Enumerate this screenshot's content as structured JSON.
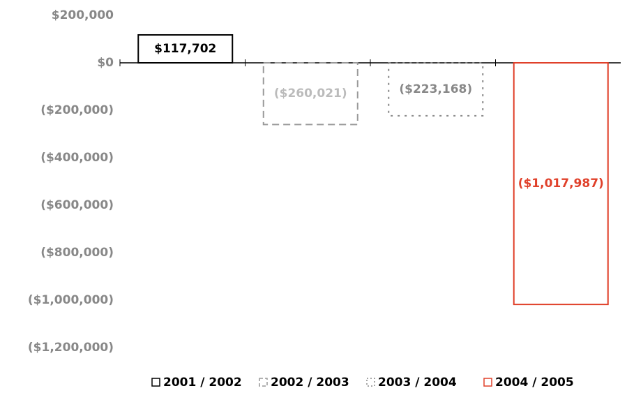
{
  "chart_data": {
    "type": "bar",
    "categories": [
      null
    ],
    "series": [
      {
        "name": "2001 / 2002",
        "color": "#000000",
        "label_color": "#000000",
        "dash": "solid",
        "values": [
          117702
        ],
        "value_labels": [
          "$117,702"
        ]
      },
      {
        "name": "2002 / 2003",
        "color": "#999999",
        "label_color": "#bbbbbb",
        "dash": "dashed",
        "values": [
          -260021
        ],
        "value_labels": [
          "($260,021)"
        ]
      },
      {
        "name": "2003 / 2004",
        "color": "#888888",
        "label_color": "#888888",
        "dash": "dotted",
        "values": [
          -223168
        ],
        "value_labels": [
          "($223,168)"
        ]
      },
      {
        "name": "2004 / 2005",
        "color": "#e0402a",
        "label_color": "#e0402a",
        "dash": "solid",
        "values": [
          -1017987
        ],
        "value_labels": [
          "($1,017,987)"
        ]
      }
    ],
    "ylim": [
      -1200000,
      200000
    ],
    "yticks": [
      {
        "value": 200000,
        "label": "$200,000"
      },
      {
        "value": 0,
        "label": "$0"
      },
      {
        "value": -200000,
        "label": "($200,000)"
      },
      {
        "value": -400000,
        "label": "($400,000)"
      },
      {
        "value": -600000,
        "label": "($600,000)"
      },
      {
        "value": -800000,
        "label": "($800,000)"
      },
      {
        "value": -1000000,
        "label": "($1,000,000)"
      },
      {
        "value": -1200000,
        "label": "($1,200,000)"
      }
    ],
    "grid": false,
    "legend": "bottom"
  }
}
